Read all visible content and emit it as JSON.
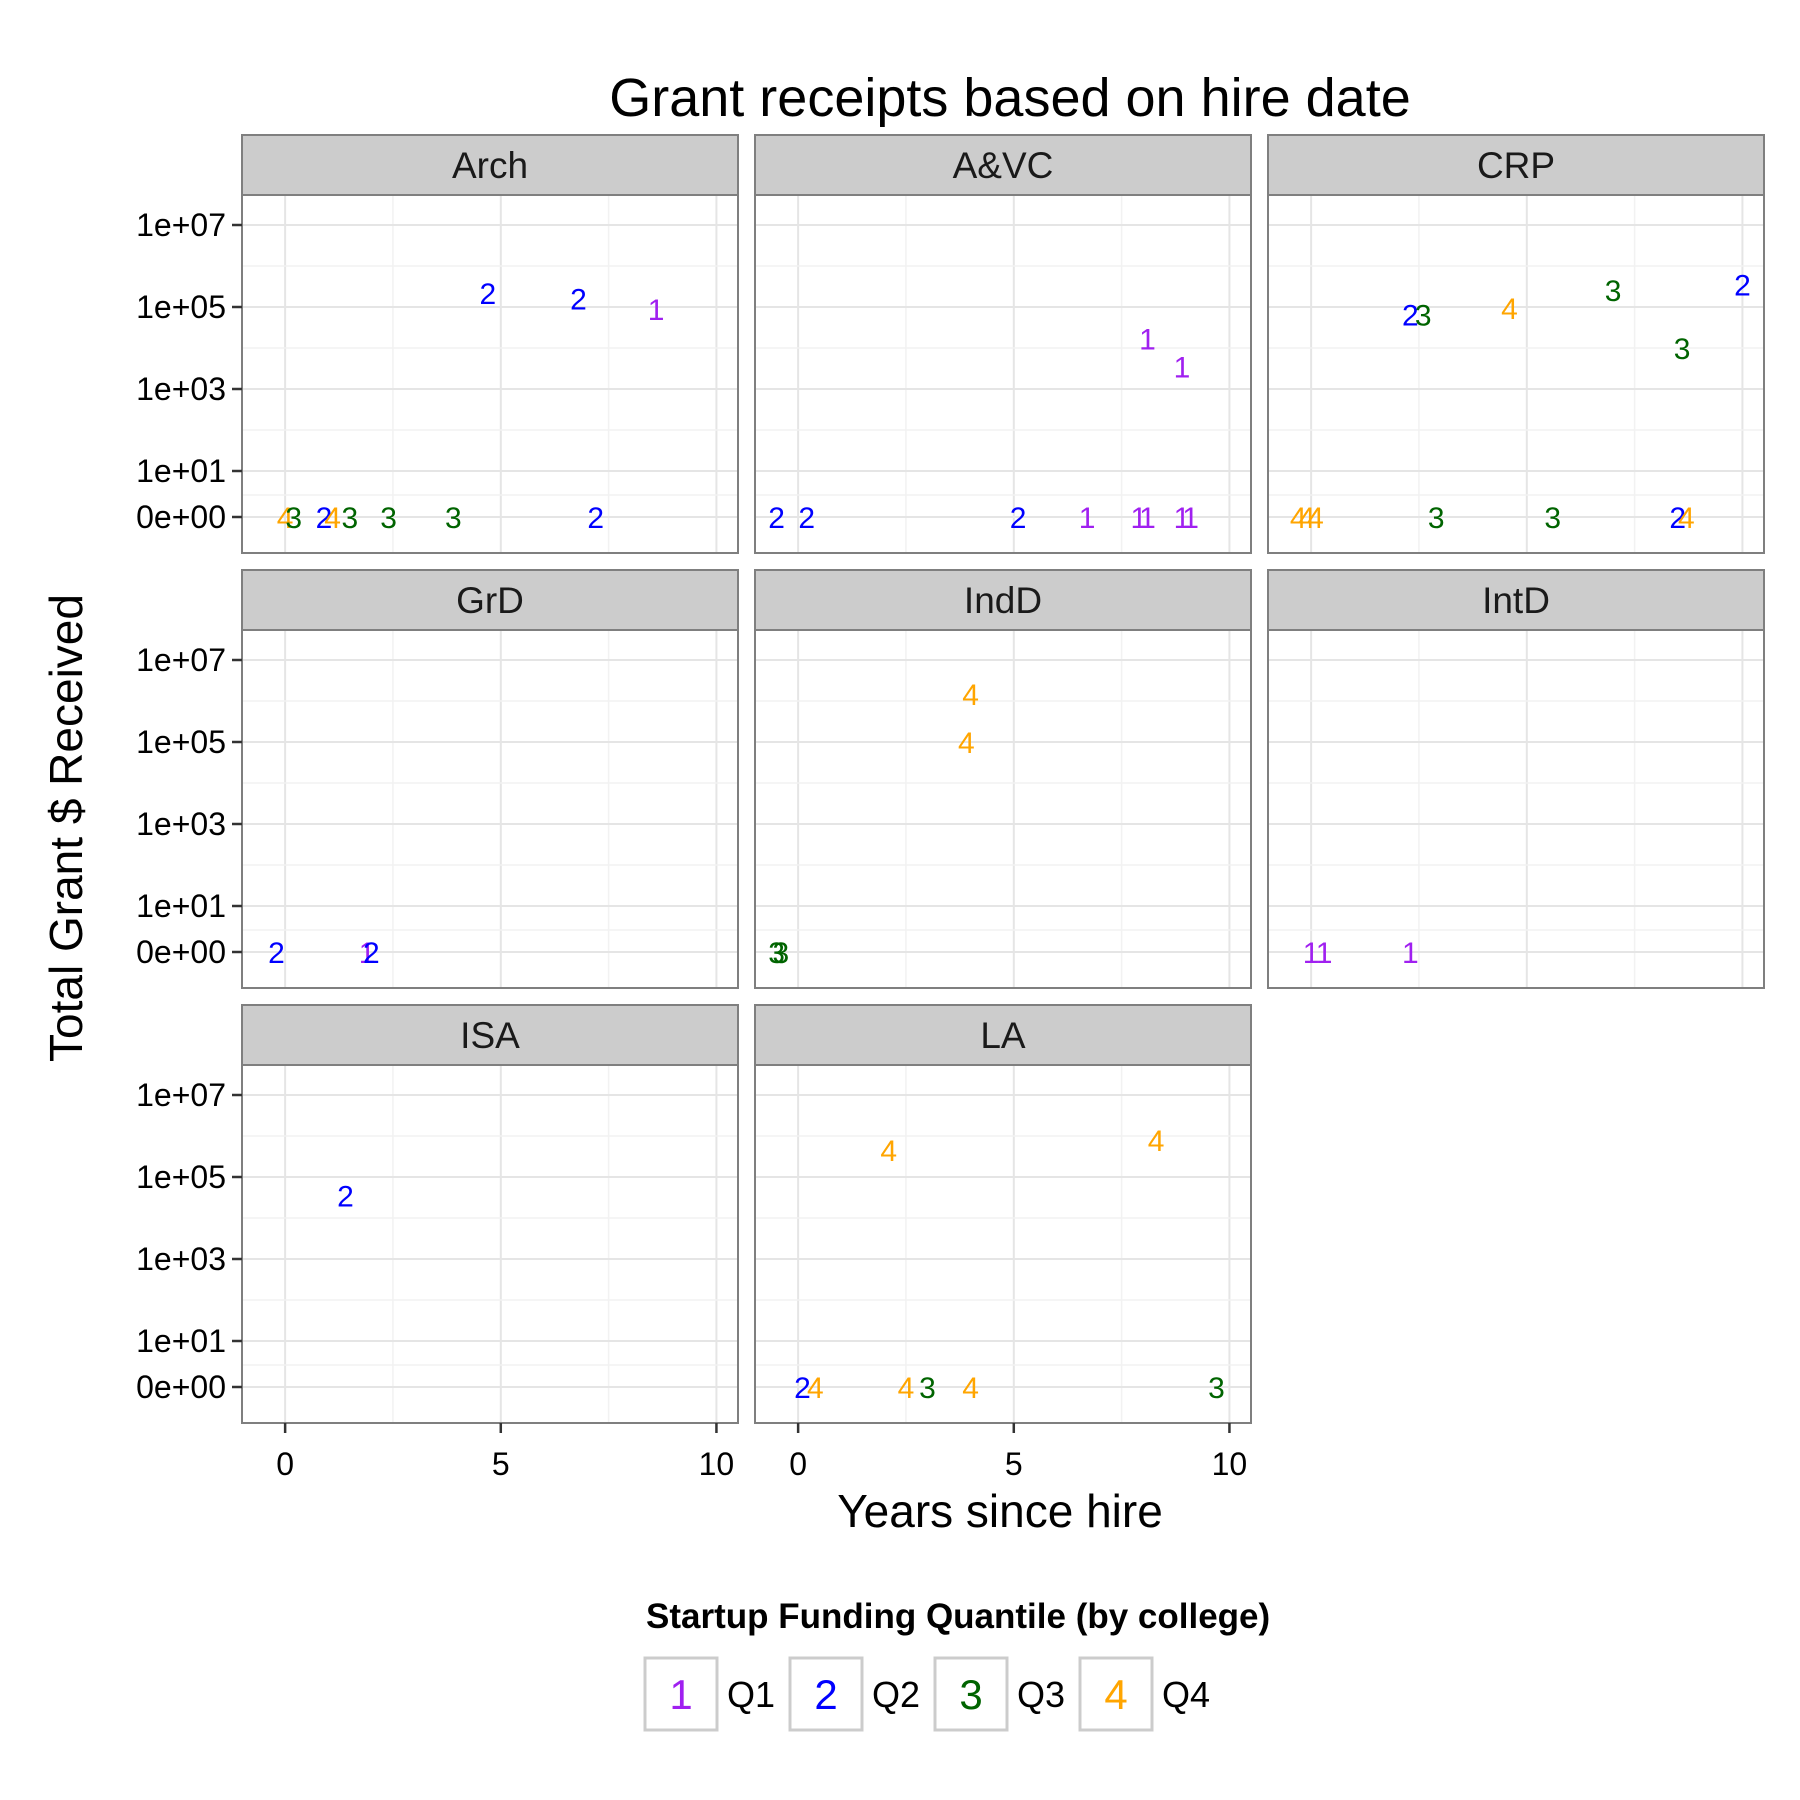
{
  "chart_data": {
    "type": "scatter",
    "title": "Grant receipts based on hire date",
    "xlabel": "Years since hire",
    "ylabel": "Total Grant $ Received",
    "xlim": [
      -1,
      10.5
    ],
    "x_ticks": [
      "0",
      "5",
      "10"
    ],
    "x_tick_values": [
      0,
      5,
      10
    ],
    "y_scale": "pseudo-log",
    "y_ticks": [
      "1e+07",
      "1e+05",
      "1e+03",
      "1e+01",
      "0e+00"
    ],
    "y_tick_values": [
      10000000,
      100000,
      1000,
      10,
      0
    ],
    "grid": true,
    "facets": [
      {
        "name": "Arch",
        "points": [
          {
            "x": 4.7,
            "y": 220000,
            "label": "2"
          },
          {
            "x": 6.8,
            "y": 160000,
            "label": "2"
          },
          {
            "x": 8.6,
            "y": 90000,
            "label": "1"
          },
          {
            "x": 0.0,
            "y": 0,
            "label": "4"
          },
          {
            "x": 0.2,
            "y": 0,
            "label": "3"
          },
          {
            "x": 0.9,
            "y": 0,
            "label": "2"
          },
          {
            "x": 1.1,
            "y": 0,
            "label": "4"
          },
          {
            "x": 1.5,
            "y": 0,
            "label": "3"
          },
          {
            "x": 2.4,
            "y": 0,
            "label": "3"
          },
          {
            "x": 3.9,
            "y": 0,
            "label": "3"
          },
          {
            "x": 7.2,
            "y": 0,
            "label": "2"
          }
        ]
      },
      {
        "name": "A&VC",
        "points": [
          {
            "x": 8.1,
            "y": 17000,
            "label": "1"
          },
          {
            "x": 8.9,
            "y": 3500,
            "label": "1"
          },
          {
            "x": -0.5,
            "y": 0,
            "label": "2"
          },
          {
            "x": 0.2,
            "y": 0,
            "label": "2"
          },
          {
            "x": 5.1,
            "y": 0,
            "label": "2"
          },
          {
            "x": 6.7,
            "y": 0,
            "label": "1"
          },
          {
            "x": 7.9,
            "y": 0,
            "label": "1"
          },
          {
            "x": 8.1,
            "y": 0,
            "label": "1"
          },
          {
            "x": 8.9,
            "y": 0,
            "label": "1"
          },
          {
            "x": 9.1,
            "y": 0,
            "label": "1"
          }
        ]
      },
      {
        "name": "CRP",
        "points": [
          {
            "x": 10.0,
            "y": 350000,
            "label": "2"
          },
          {
            "x": 7.0,
            "y": 260000,
            "label": "3"
          },
          {
            "x": 4.6,
            "y": 95000,
            "label": "4"
          },
          {
            "x": 2.3,
            "y": 65000,
            "label": "2"
          },
          {
            "x": 2.6,
            "y": 65000,
            "label": "3"
          },
          {
            "x": 8.6,
            "y": 10000,
            "label": "3"
          },
          {
            "x": -0.3,
            "y": 0,
            "label": "4"
          },
          {
            "x": -0.1,
            "y": 0,
            "label": "4"
          },
          {
            "x": 0.1,
            "y": 0,
            "label": "4"
          },
          {
            "x": 2.9,
            "y": 0,
            "label": "3"
          },
          {
            "x": 5.6,
            "y": 0,
            "label": "3"
          },
          {
            "x": 8.5,
            "y": 0,
            "label": "2"
          },
          {
            "x": 8.7,
            "y": 0,
            "label": "4"
          }
        ]
      },
      {
        "name": "GrD",
        "points": [
          {
            "x": -0.2,
            "y": 0,
            "label": "2"
          },
          {
            "x": 1.9,
            "y": 0,
            "label": "1"
          },
          {
            "x": 2.0,
            "y": 0,
            "label": "2"
          }
        ]
      },
      {
        "name": "IndD",
        "points": [
          {
            "x": 4.0,
            "y": 1500000,
            "label": "4"
          },
          {
            "x": 3.9,
            "y": 100000,
            "label": "4"
          },
          {
            "x": -0.5,
            "y": 0,
            "label": "3"
          },
          {
            "x": -0.4,
            "y": 0,
            "label": "3"
          }
        ]
      },
      {
        "name": "IntD",
        "points": [
          {
            "x": 0.0,
            "y": 0,
            "label": "1"
          },
          {
            "x": 0.3,
            "y": 0,
            "label": "1"
          },
          {
            "x": 2.3,
            "y": 0,
            "label": "1"
          }
        ]
      },
      {
        "name": "ISA",
        "points": [
          {
            "x": 1.4,
            "y": 35000,
            "label": "2"
          }
        ]
      },
      {
        "name": "LA",
        "points": [
          {
            "x": 8.3,
            "y": 800000,
            "label": "4"
          },
          {
            "x": 2.1,
            "y": 450000,
            "label": "4"
          },
          {
            "x": 0.1,
            "y": 0,
            "label": "2"
          },
          {
            "x": 0.4,
            "y": 0,
            "label": "4"
          },
          {
            "x": 2.5,
            "y": 0,
            "label": "4"
          },
          {
            "x": 3.0,
            "y": 0,
            "label": "3"
          },
          {
            "x": 4.0,
            "y": 0,
            "label": "4"
          },
          {
            "x": 9.7,
            "y": 0,
            "label": "3"
          }
        ]
      }
    ],
    "legend": {
      "title": "Startup Funding Quantile (by college)",
      "placement": "bottom",
      "entries": [
        {
          "key": "1",
          "label": "Q1",
          "color": "#a020f0"
        },
        {
          "key": "2",
          "label": "Q2",
          "color": "#0000ff"
        },
        {
          "key": "3",
          "label": "Q3",
          "color": "#006400"
        },
        {
          "key": "4",
          "label": "Q4",
          "color": "#ffa500"
        }
      ]
    }
  }
}
